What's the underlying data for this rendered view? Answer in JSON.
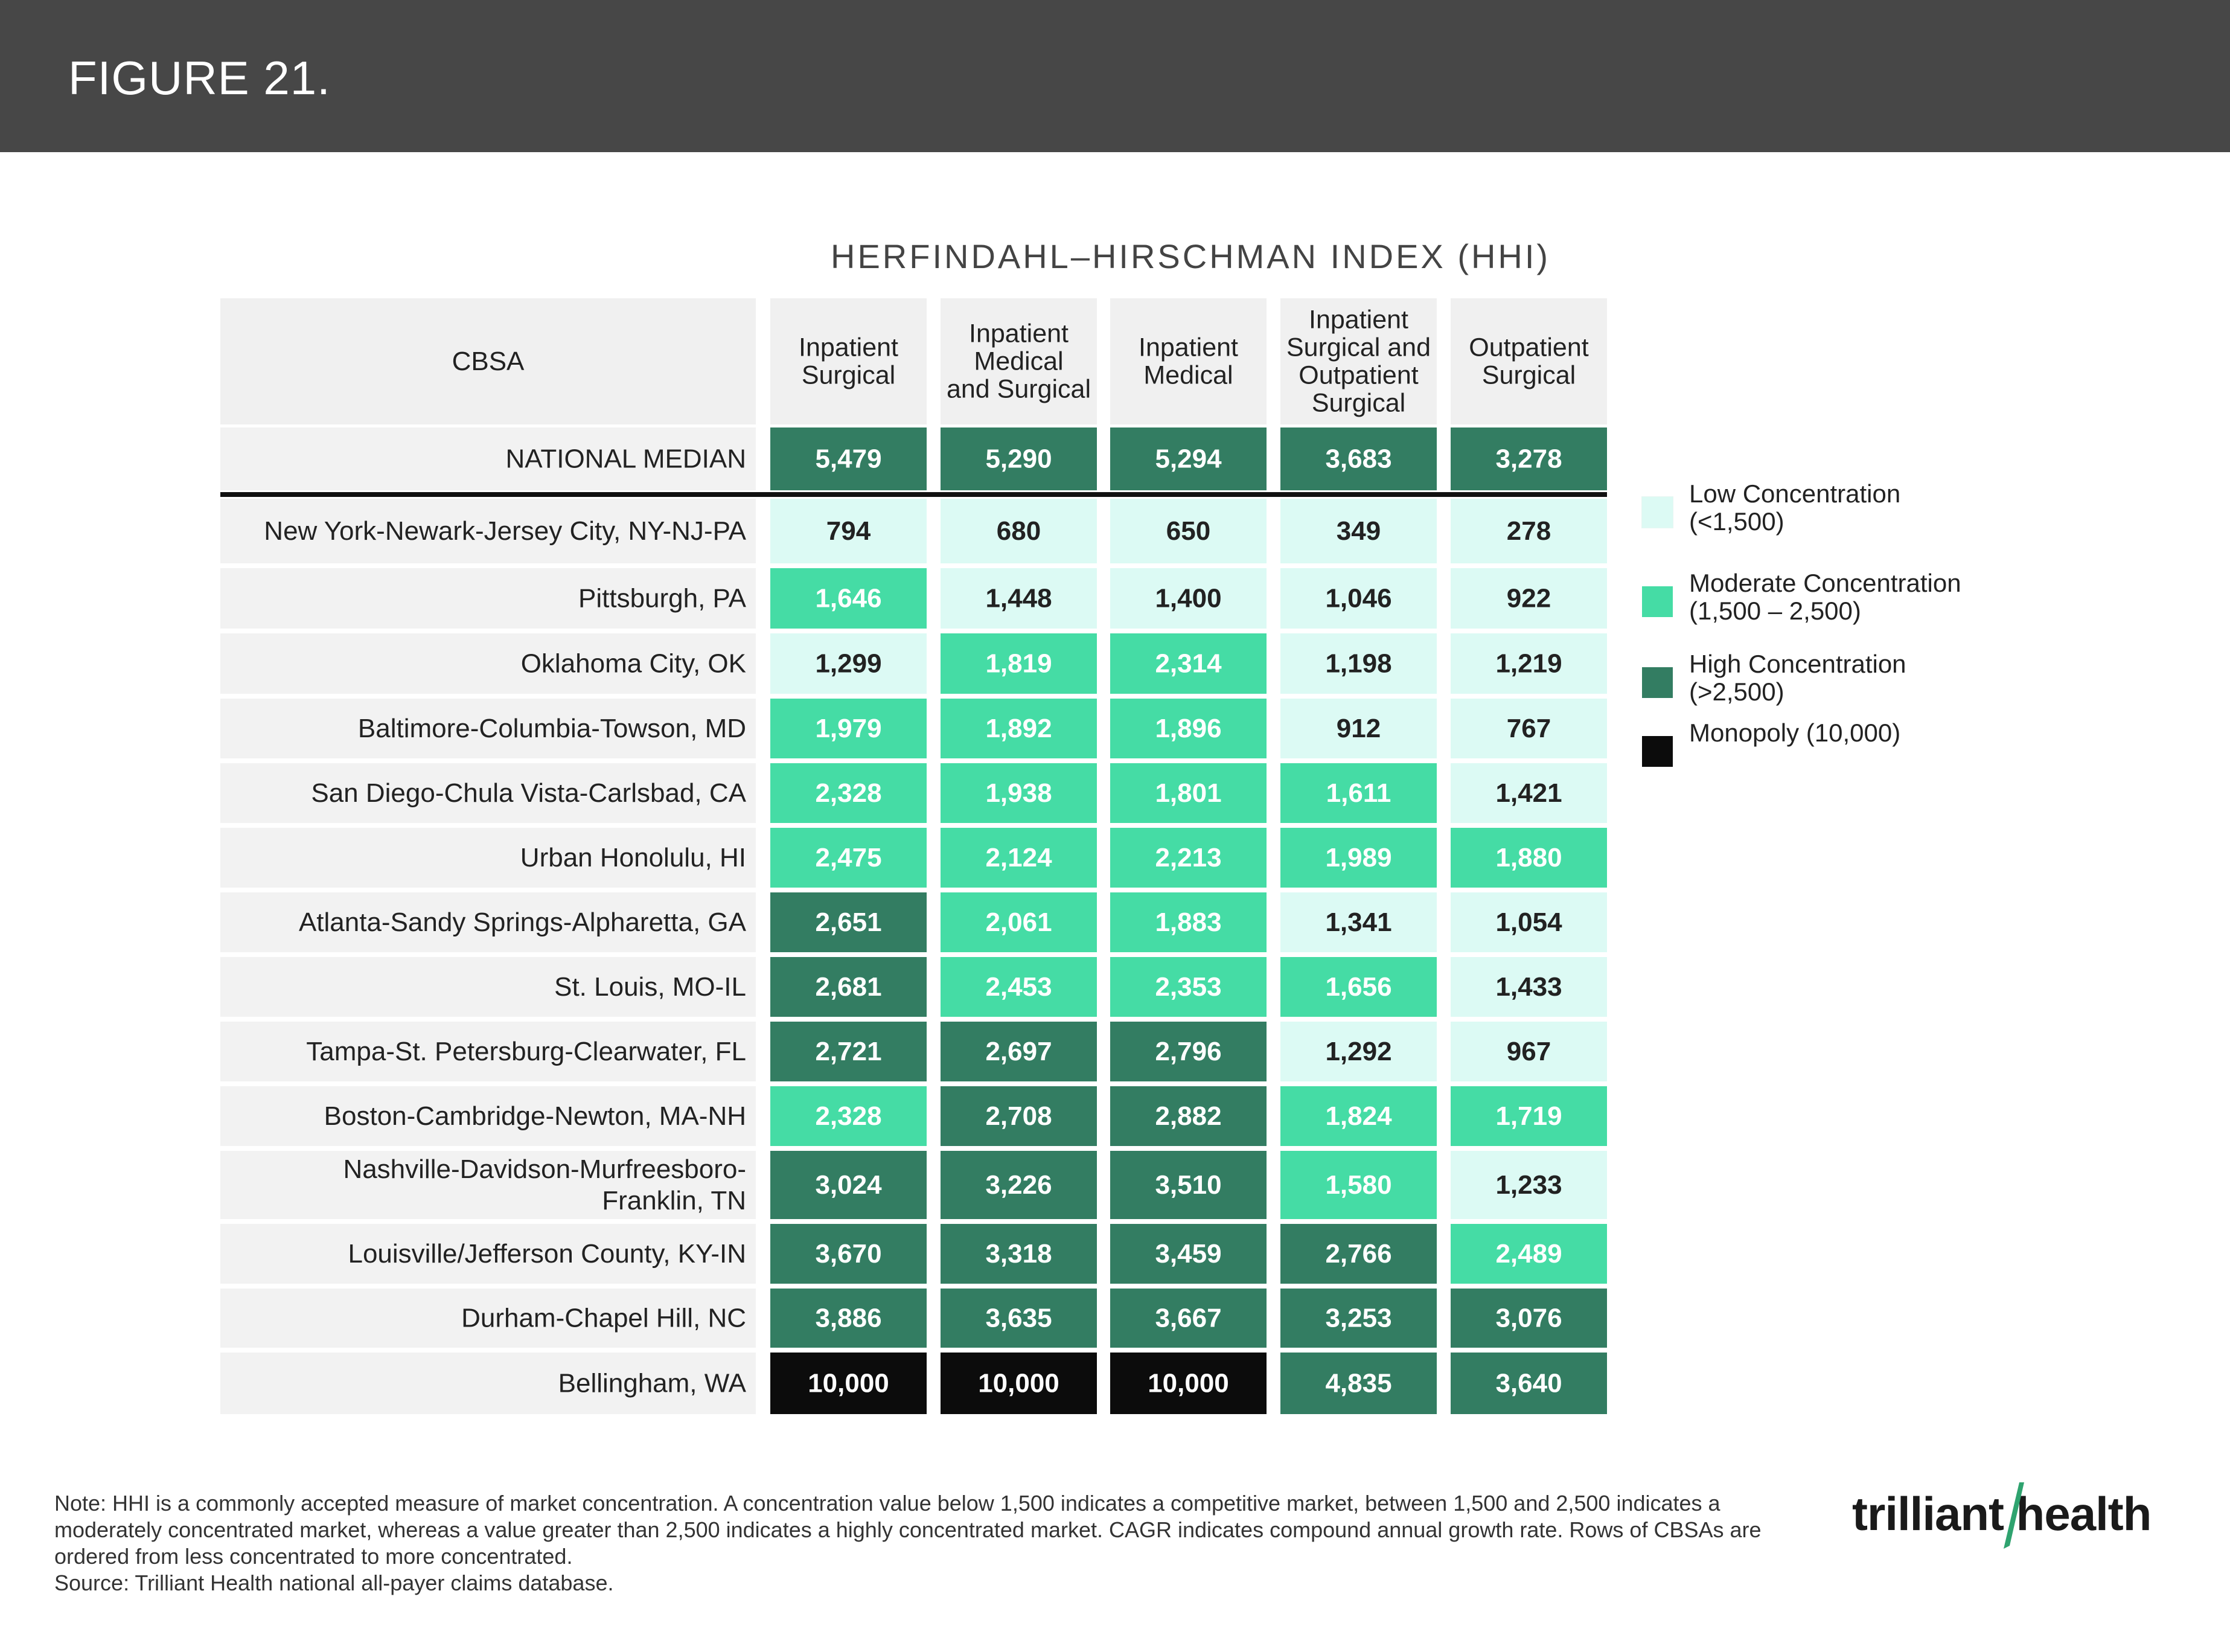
{
  "header": {
    "title": "FIGURE 21."
  },
  "chart_data": {
    "type": "table",
    "title": "HERFINDAHL–HIRSCHMAN INDEX (HHI)",
    "row_header": "CBSA",
    "columns": [
      [
        "Inpatient",
        "Surgical"
      ],
      [
        "Inpatient",
        "Medical",
        "and Surgical"
      ],
      [
        "Inpatient",
        "Medical"
      ],
      [
        "Inpatient",
        "Surgical and",
        "Outpatient",
        "Surgical"
      ],
      [
        "Outpatient",
        "Surgical"
      ]
    ],
    "median": {
      "label": "NATIONAL MEDIAN",
      "values": [
        "5,479",
        "5,290",
        "5,294",
        "3,683",
        "3,278"
      ]
    },
    "rows": [
      {
        "label": [
          "New York-Newark-Jersey City, NY-NJ-PA"
        ],
        "values": [
          "794",
          "680",
          "650",
          "349",
          "278"
        ]
      },
      {
        "label": [
          "Pittsburgh, PA"
        ],
        "values": [
          "1,646",
          "1,448",
          "1,400",
          "1,046",
          "922"
        ]
      },
      {
        "label": [
          "Oklahoma City, OK"
        ],
        "values": [
          "1,299",
          "1,819",
          "2,314",
          "1,198",
          "1,219"
        ]
      },
      {
        "label": [
          "Baltimore-Columbia-Towson, MD"
        ],
        "values": [
          "1,979",
          "1,892",
          "1,896",
          "912",
          "767"
        ]
      },
      {
        "label": [
          "San Diego-Chula Vista-Carlsbad, CA"
        ],
        "values": [
          "2,328",
          "1,938",
          "1,801",
          "1,611",
          "1,421"
        ]
      },
      {
        "label": [
          "Urban Honolulu, HI"
        ],
        "values": [
          "2,475",
          "2,124",
          "2,213",
          "1,989",
          "1,880"
        ]
      },
      {
        "label": [
          "Atlanta-Sandy Springs-Alpharetta, GA"
        ],
        "values": [
          "2,651",
          "2,061",
          "1,883",
          "1,341",
          "1,054"
        ]
      },
      {
        "label": [
          "St. Louis, MO-IL"
        ],
        "values": [
          "2,681",
          "2,453",
          "2,353",
          "1,656",
          "1,433"
        ]
      },
      {
        "label": [
          "Tampa-St. Petersburg-Clearwater, FL"
        ],
        "values": [
          "2,721",
          "2,697",
          "2,796",
          "1,292",
          "967"
        ]
      },
      {
        "label": [
          "Boston-Cambridge-Newton, MA-NH"
        ],
        "values": [
          "2,328",
          "2,708",
          "2,882",
          "1,824",
          "1,719"
        ]
      },
      {
        "label": [
          "Nashville-Davidson-Murfreesboro-",
          "Franklin, TN"
        ],
        "values": [
          "3,024",
          "3,226",
          "3,510",
          "1,580",
          "1,233"
        ]
      },
      {
        "label": [
          "Louisville/Jefferson County, KY-IN"
        ],
        "values": [
          "3,670",
          "3,318",
          "3,459",
          "2,766",
          "2,489"
        ]
      },
      {
        "label": [
          "Durham-Chapel Hill, NC"
        ],
        "values": [
          "3,886",
          "3,635",
          "3,667",
          "3,253",
          "3,076"
        ]
      },
      {
        "label": [
          "Bellingham, WA"
        ],
        "values": [
          "10,000",
          "10,000",
          "10,000",
          "4,835",
          "3,640"
        ]
      }
    ],
    "legend": [
      {
        "label": "Low Concentration\n(<1,500)",
        "color": "#dcfaf4"
      },
      {
        "label": "Moderate Concentration\n(1,500 – 2,500)",
        "color": "#45dca5"
      },
      {
        "label": "High Concentration\n(>2,500)",
        "color": "#337d62"
      },
      {
        "label": "Monopoly (10,000)",
        "color": "#0c0c0c"
      }
    ],
    "colors": {
      "header_bg": "#f0f0f0",
      "label_bg": "#f2f2f2",
      "low": "#dcfaf4",
      "moderate": "#45dca5",
      "high": "#337d62",
      "monopoly": "#0c0c0c"
    }
  },
  "note": {
    "text": "Note: HHI is a commonly accepted measure of market concentration. A concentration value below 1,500 indicates a competitive market, between 1,500 and 2,500 indicates a moderately concentrated market, whereas a value greater than 2,500 indicates a highly concentrated market. CAGR indicates compound annual growth rate. Rows of CBSAs are ordered from less concentrated to more concentrated.",
    "source": "Source: Trilliant Health national all-payer claims database."
  },
  "logo": {
    "text": "trilliant health"
  }
}
